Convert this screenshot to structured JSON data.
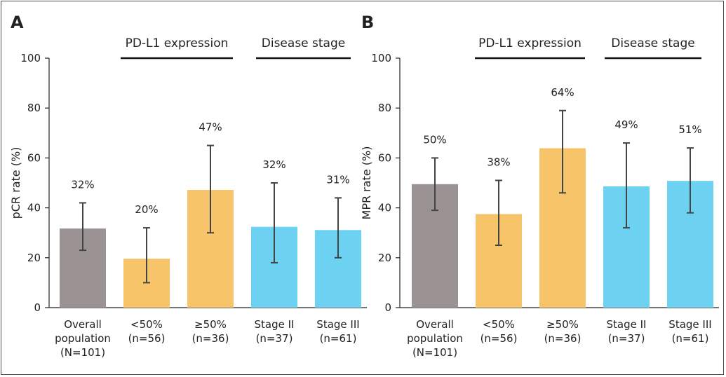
{
  "colors": {
    "overall": "#9b9393",
    "pdl1": "#f8c46a",
    "stage": "#6dd1f1",
    "errorbar": "#444444",
    "axis": "#222222"
  },
  "groups": {
    "pdl1": "PD-L1 expression",
    "stage": "Disease stage"
  },
  "chart_data": [
    {
      "type": "bar",
      "panel": "A",
      "ylabel": "pCR rate (%)",
      "ylim": [
        0,
        100
      ],
      "yticks": [
        "0",
        "20",
        "40",
        "60",
        "80",
        "100"
      ],
      "categories": [
        [
          "Overall",
          "population",
          "(N=101)"
        ],
        [
          "<50%",
          "(n=56)"
        ],
        [
          "≥50%",
          "(n=36)"
        ],
        [
          "Stage II",
          "(n=37)"
        ],
        [
          "Stage III",
          "(n=61)"
        ]
      ],
      "values": [
        31.7,
        19.6,
        47.2,
        32.4,
        31.1
      ],
      "labels": [
        "32%",
        "20%",
        "47%",
        "32%",
        "31%"
      ],
      "err_low": [
        23,
        10,
        30,
        18,
        20
      ],
      "err_high": [
        42,
        32,
        65,
        50,
        44
      ],
      "color_keys": [
        "overall",
        "pdl1",
        "pdl1",
        "stage",
        "stage"
      ]
    },
    {
      "type": "bar",
      "panel": "B",
      "ylabel": "MPR rate (%)",
      "ylim": [
        0,
        100
      ],
      "yticks": [
        "0",
        "20",
        "40",
        "60",
        "80",
        "100"
      ],
      "categories": [
        [
          "Overall",
          "population",
          "(N=101)"
        ],
        [
          "<50%",
          "(n=56)"
        ],
        [
          "≥50%",
          "(n=36)"
        ],
        [
          "Stage II",
          "(n=37)"
        ],
        [
          "Stage III",
          "(n=61)"
        ]
      ],
      "values": [
        49.5,
        37.5,
        63.9,
        48.6,
        50.8
      ],
      "labels": [
        "50%",
        "38%",
        "64%",
        "49%",
        "51%"
      ],
      "err_low": [
        39,
        25,
        46,
        32,
        38
      ],
      "err_high": [
        60,
        51,
        79,
        66,
        64
      ],
      "color_keys": [
        "overall",
        "pdl1",
        "pdl1",
        "stage",
        "stage"
      ]
    }
  ]
}
